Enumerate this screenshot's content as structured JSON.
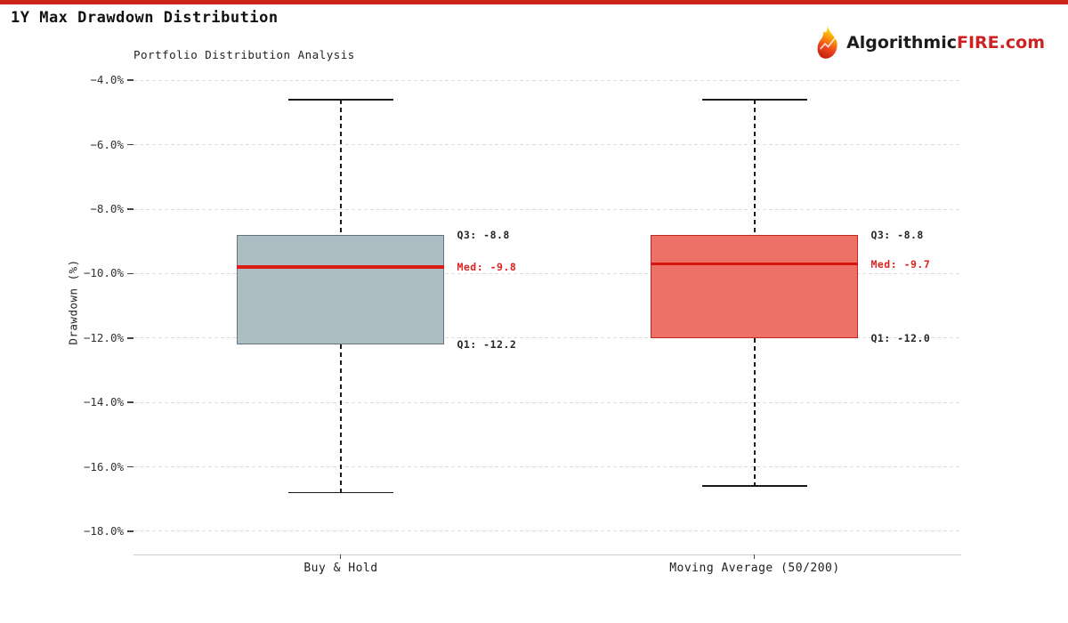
{
  "header": {
    "title": "1Y Max Drawdown Distribution",
    "brand_dark": "Algorithmic",
    "brand_red": "FIRE.com",
    "accent_color": "#cc2418"
  },
  "chart_data": {
    "type": "boxplot",
    "title": "Portfolio Distribution Analysis",
    "ylabel": "Drawdown (%)",
    "ylim": [
      -18.7,
      -3.8
    ],
    "grid": true,
    "yticks": [
      -4,
      -6,
      -8,
      -10,
      -12,
      -14,
      -16,
      -18
    ],
    "ytick_labels": [
      "−4.0%",
      "−6.0%",
      "−8.0%",
      "−10.0%",
      "−12.0%",
      "−14.0%",
      "−16.0%",
      "−18.0%"
    ],
    "categories": [
      "Buy & Hold",
      "Moving Average (50/200)"
    ],
    "annotation_dark": "#262626",
    "annotation_red": "#dd2222",
    "series": [
      {
        "name": "Buy & Hold",
        "whisker_high": -4.6,
        "q3": -8.8,
        "median": -9.8,
        "q1": -12.2,
        "whisker_low": -16.8,
        "q3_label": "Q3: -8.8",
        "med_label": "Med: -9.8",
        "q1_label": "Q1: -12.2",
        "box_fill": "#aebcc4",
        "box_edge": "#64737c",
        "median_color": "#dd1b15"
      },
      {
        "name": "Moving Average (50/200)",
        "whisker_high": -4.6,
        "q3": -8.8,
        "median": -9.7,
        "q1": -12.0,
        "whisker_low": -16.6,
        "q3_label": "Q3: -8.8",
        "med_label": "Med: -9.7",
        "q1_label": "Q1: -12.0",
        "box_fill": "#ee7168",
        "box_edge": "#c4281c",
        "median_color": "#d41510"
      }
    ]
  }
}
